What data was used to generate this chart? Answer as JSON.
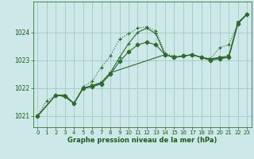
{
  "background_color": "#cce8e8",
  "grid_color": "#aacccc",
  "line_color": "#2d6a2d",
  "xlabel": "Graphe pression niveau de la mer (hPa)",
  "xlabel_color": "#1a5c1a",
  "tick_color": "#1a5c1a",
  "xlim": [
    -0.5,
    23.5
  ],
  "ylim": [
    1020.6,
    1025.1
  ],
  "yticks": [
    1021,
    1022,
    1023,
    1024
  ],
  "xticks": [
    0,
    1,
    2,
    3,
    4,
    5,
    6,
    7,
    8,
    9,
    10,
    11,
    12,
    13,
    14,
    15,
    16,
    17,
    18,
    19,
    20,
    21,
    22,
    23
  ],
  "series": [
    {
      "x": [
        0,
        1,
        2,
        3,
        4,
        5,
        6,
        7,
        8,
        9,
        10,
        11,
        12,
        13,
        14,
        15,
        16,
        17,
        18,
        19,
        20,
        21,
        22,
        23
      ],
      "y": [
        1021.0,
        1021.55,
        1021.75,
        1021.75,
        1021.45,
        1022.05,
        1022.25,
        1022.75,
        1023.15,
        1023.75,
        1023.95,
        1024.15,
        1024.2,
        1024.05,
        1023.25,
        1023.15,
        1023.15,
        1023.2,
        1023.1,
        1023.05,
        1023.45,
        1023.55,
        1024.3,
        1024.65
      ],
      "linestyle": "dotted",
      "marker": "+"
    },
    {
      "x": [
        0,
        2,
        3,
        4,
        5,
        6,
        7,
        8,
        14,
        15,
        16,
        17,
        18,
        19,
        20,
        21,
        22,
        23
      ],
      "y": [
        1021.0,
        1021.75,
        1021.75,
        1021.45,
        1022.0,
        1022.1,
        1022.2,
        1022.55,
        1023.2,
        1023.1,
        1023.15,
        1023.2,
        1023.1,
        1023.05,
        1023.1,
        1023.15,
        1024.35,
        1024.65
      ],
      "linestyle": "solid",
      "marker": ">"
    },
    {
      "x": [
        0,
        2,
        3,
        4,
        5,
        6,
        7,
        8,
        9,
        10,
        11,
        12,
        13,
        14,
        15,
        16,
        17,
        18,
        19,
        20,
        21,
        22,
        23
      ],
      "y": [
        1021.0,
        1021.75,
        1021.7,
        1021.45,
        1022.0,
        1022.05,
        1022.2,
        1022.55,
        1023.1,
        1023.6,
        1024.0,
        1024.15,
        1023.95,
        1023.2,
        1023.1,
        1023.15,
        1023.2,
        1023.1,
        1023.0,
        1023.1,
        1023.1,
        1024.3,
        1024.65
      ],
      "linestyle": "solid",
      "marker": "+"
    },
    {
      "x": [
        0,
        2,
        3,
        4,
        5,
        6,
        7,
        8,
        9,
        10,
        11,
        12,
        13,
        14,
        15,
        16,
        17,
        18,
        19,
        20,
        21,
        22,
        23
      ],
      "y": [
        1021.0,
        1021.75,
        1021.7,
        1021.45,
        1022.0,
        1022.05,
        1022.15,
        1022.5,
        1022.95,
        1023.3,
        1023.55,
        1023.65,
        1023.55,
        1023.2,
        1023.1,
        1023.15,
        1023.2,
        1023.1,
        1023.0,
        1023.05,
        1023.1,
        1024.3,
        1024.65
      ],
      "linestyle": "solid",
      "marker": "D"
    }
  ]
}
